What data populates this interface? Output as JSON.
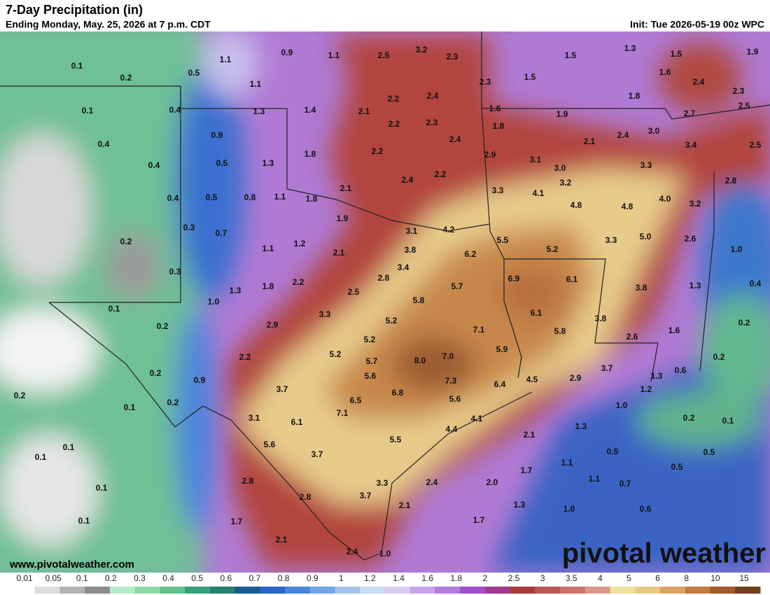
{
  "header": {
    "title": "7-Day Precipitation (in)",
    "subtitle": "Ending Monday, May. 25, 2026 at 7 p.m. CDT",
    "init": "Init: Tue 2026-05-19 00z WPC"
  },
  "map": {
    "labels": [
      "0.1",
      "0.2",
      "0.1",
      "0.4",
      "0.4",
      "0.4",
      "0.3",
      "0.2",
      "0.3",
      "0.1",
      "0.2",
      "0.2",
      "0.1",
      "0.2",
      "0.2",
      "0.1",
      "0.1",
      "0.1",
      "0.1",
      "0.5",
      "1.1",
      "0.9",
      "1.1",
      "2.5",
      "3.2",
      "2.3",
      "1.5",
      "1.3",
      "1.5",
      "1.9",
      "1.1",
      "0.4",
      "1.3",
      "1.4",
      "2.1",
      "2.2",
      "2.4",
      "2.3",
      "1.5",
      "1.6",
      "2.4",
      "2.3",
      "1.8",
      "0.9",
      "2.2",
      "2.3",
      "1.6",
      "1.8",
      "1.9",
      "2.7",
      "2.5",
      "0.5",
      "1.3",
      "1.8",
      "2.2",
      "2.4",
      "2.1",
      "2.4",
      "3.0",
      "3.4",
      "2.5",
      "2.9",
      "3.1",
      "3.0",
      "3.3",
      "2.4",
      "2.2",
      "3.2",
      "2.8",
      "0.5",
      "0.8",
      "1.1",
      "1.8",
      "2.1",
      "3.3",
      "4.1",
      "4.8",
      "4.8",
      "4.0",
      "3.2",
      "0.7",
      "1.9",
      "3.1",
      "4.2",
      "5.5",
      "5.2",
      "3.3",
      "5.0",
      "2.6",
      "1.0",
      "1.1",
      "1.2",
      "2.1",
      "3.8",
      "6.2",
      "3.4",
      "2.8",
      "2.2",
      "1.8",
      "1.3",
      "1.0",
      "2.5",
      "6.9",
      "6.1",
      "3.8",
      "1.3",
      "0.4",
      "5.7",
      "5.8",
      "3.3",
      "6.1",
      "3.8",
      "5.2",
      "7.1",
      "5.8",
      "1.6",
      "0.2",
      "2.9",
      "5.2",
      "2.6",
      "5.9",
      "5.2",
      "2.2",
      "5.7",
      "8.0",
      "7.0",
      "0.2",
      "3.7",
      "0.6",
      "5.6",
      "7.3",
      "4.5",
      "2.9",
      "1.3",
      "0.9",
      "6.4",
      "6.5",
      "6.8",
      "5.6",
      "3.7",
      "1.2",
      "1.0",
      "7.1",
      "3.1",
      "6.1",
      "4.1",
      "4.4",
      "0.2",
      "0.1",
      "1.3",
      "2.1",
      "5.6",
      "5.5",
      "3.7",
      "0.5",
      "0.5",
      "1.1",
      "1.7",
      "0.5",
      "2.8",
      "3.3",
      "2.4",
      "2.0",
      "1.1",
      "0.7",
      "2.8",
      "3.7",
      "2.1",
      "1.3",
      "1.0",
      "0.6",
      "1.7",
      "1.7",
      "2.1",
      "2.4",
      "1.0"
    ]
  },
  "legend": {
    "ticks": [
      0.01,
      0.05,
      0.1,
      0.2,
      0.3,
      0.4,
      0.5,
      0.6,
      0.7,
      0.8,
      0.9,
      1,
      1.2,
      1.4,
      1.6,
      1.8,
      2,
      2.5,
      3,
      3.5,
      4,
      5,
      6,
      8,
      10,
      15
    ],
    "colors": [
      "#ffffff",
      "#dcdcdc",
      "#b4b4b4",
      "#8c8c8c",
      "#b4ecc8",
      "#8cd8a8",
      "#64c08c",
      "#3ca07c",
      "#288070",
      "#1c5c8c",
      "#2c64c8",
      "#4c84dc",
      "#74a4e4",
      "#a4c4ec",
      "#c8dcf4",
      "#dccaf0",
      "#c8a4e8",
      "#b47cdc",
      "#a050c8",
      "#a03c8c",
      "#a83c3c",
      "#b85850",
      "#c87468",
      "#d8988c",
      "#f0e0a0",
      "#e8c884",
      "#d8a464",
      "#c07c44",
      "#9c5c30",
      "#704020"
    ]
  },
  "footer": {
    "url": "www.pivotalweather.com",
    "logo": "pivotal weather"
  }
}
